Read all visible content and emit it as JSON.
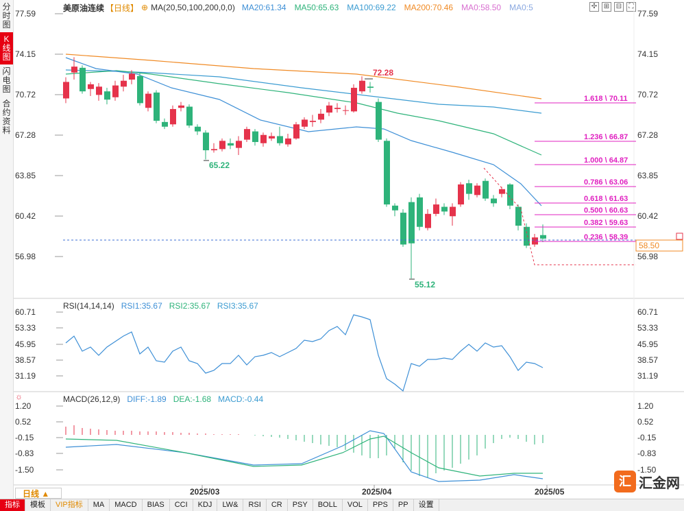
{
  "sidebar": {
    "tabs": [
      {
        "label": "分时图",
        "active": false
      },
      {
        "label": "K线图",
        "active": true
      },
      {
        "label": "闪电图",
        "active": false
      },
      {
        "label": "合约资料",
        "active": false
      }
    ]
  },
  "main_chart": {
    "symbol": "美原油连续",
    "period_tag": "【日线】",
    "ma_params": "MA(20,50,100,200,0,0)",
    "ma_values": [
      {
        "label": "MA20:61.34",
        "color": "#3d8fd6"
      },
      {
        "label": "MA50:65.63",
        "color": "#2eb37a"
      },
      {
        "label": "MA100:69.22",
        "color": "#3a9bd1"
      },
      {
        "label": "MA200:70.46",
        "color": "#f08a24"
      },
      {
        "label": "MA0:58.50",
        "color": "#d86fd0"
      },
      {
        "label": "MA0:5",
        "color": "#8aa8e0"
      }
    ],
    "y_ticks": [
      "77.59",
      "74.15",
      "70.72",
      "67.28",
      "63.85",
      "60.42",
      "56.98"
    ],
    "current_price": "58.50",
    "high_label": "72.28",
    "low_label_1": "65.22",
    "low_label_2": "55.12",
    "fib_levels": [
      "1.618 \\ 70.11",
      "1.236 \\ 66.87",
      "1.000 \\ 64.87",
      "0.786 \\ 63.06",
      "0.618 \\ 61.63",
      "0.500 \\ 60.63",
      "0.382 \\ 59.63",
      "0.236 \\ 58.39"
    ]
  },
  "rsi_panel": {
    "title": "RSI(14,14,14)",
    "values": [
      {
        "label": "RSI1:35.67",
        "color": "#3d8fd6"
      },
      {
        "label": "RSI2:35.67",
        "color": "#2eb37a"
      },
      {
        "label": "RSI3:35.67",
        "color": "#3a9bd1"
      }
    ],
    "y_ticks": [
      "60.71",
      "53.33",
      "45.95",
      "38.57",
      "31.19"
    ]
  },
  "macd_panel": {
    "title": "MACD(26,12,9)",
    "values": [
      {
        "label": "DIFF:-1.89",
        "color": "#3d8fd6"
      },
      {
        "label": "DEA:-1.68",
        "color": "#2eb37a"
      },
      {
        "label": "MACD:-0.44",
        "color": "#3a9bd1"
      }
    ],
    "y_ticks": [
      "1.20",
      "0.52",
      "-0.15",
      "-0.83",
      "-1.50"
    ]
  },
  "x_axis": {
    "labels": [
      "2025/03",
      "2025/04",
      "2025/05"
    ]
  },
  "period_selector": "日线 ▲",
  "bottom_bar": {
    "items": [
      {
        "label": "指标",
        "style": "active"
      },
      {
        "label": "模板",
        "style": ""
      },
      {
        "label": "VIP指标",
        "style": "vip"
      },
      {
        "label": "MA",
        "style": ""
      },
      {
        "label": "MACD",
        "style": ""
      },
      {
        "label": "BIAS",
        "style": ""
      },
      {
        "label": "CCI",
        "style": ""
      },
      {
        "label": "KDJ",
        "style": ""
      },
      {
        "label": "LW&",
        "style": ""
      },
      {
        "label": "RSI",
        "style": ""
      },
      {
        "label": "CR",
        "style": ""
      },
      {
        "label": "PSY",
        "style": ""
      },
      {
        "label": "BOLL",
        "style": ""
      },
      {
        "label": "VOL",
        "style": ""
      },
      {
        "label": "PPS",
        "style": ""
      },
      {
        "label": "PP",
        "style": ""
      },
      {
        "label": "设置",
        "style": ""
      }
    ]
  },
  "logo": {
    "text": "汇金网",
    "mark": "汇"
  },
  "toolbar": {
    "icons": [
      "crosshair-icon",
      "zoom-in-icon",
      "zoom-out-icon",
      "fullscreen-icon"
    ],
    "glyphs": [
      "✣",
      "⊞",
      "⊟",
      "⛶"
    ]
  },
  "colors": {
    "up": "#e5334b",
    "down": "#2eb37a",
    "fib": "#e020c0",
    "ma20": "#3d8fd6",
    "ma50": "#2eb37a",
    "ma200": "#f08a24"
  }
}
